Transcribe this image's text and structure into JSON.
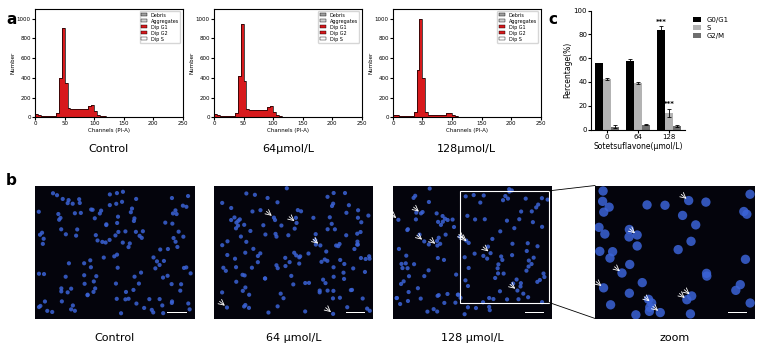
{
  "panel_labels": [
    "a",
    "b",
    "c"
  ],
  "histograms": {
    "type": "histogram",
    "x_label": "Channels (PI-A)",
    "y_label": "Number",
    "xlim": [
      0,
      250
    ],
    "xticks": [
      0,
      50,
      100,
      150,
      200,
      250
    ],
    "ylim": [
      0,
      1100
    ],
    "yticks": [
      0,
      200,
      400,
      600,
      800,
      1000
    ],
    "bins": [
      0,
      5,
      10,
      15,
      20,
      25,
      30,
      35,
      40,
      45,
      50,
      55,
      60,
      65,
      70,
      75,
      80,
      85,
      90,
      95,
      100,
      105,
      110,
      115,
      120,
      125,
      130,
      135,
      140,
      145,
      150
    ],
    "color": "#d7191c",
    "legend": "upper right",
    "legend_entries": [
      {
        "name": "Debris",
        "color": "#a0a0a0"
      },
      {
        "name": "Aggregates",
        "color": "#d0d0d0"
      },
      {
        "name": "Dip G1",
        "color": "#d7191c"
      },
      {
        "name": "Dip G2",
        "color": "#d7191c"
      },
      {
        "name": "Dip S",
        "color": "#ffffff"
      }
    ],
    "panels": [
      {
        "caption": "Control",
        "counts": [
          30,
          20,
          15,
          10,
          10,
          10,
          15,
          40,
          400,
          900,
          350,
          90,
          80,
          80,
          80,
          80,
          80,
          85,
          110,
          120,
          60,
          20,
          10,
          8,
          6,
          5,
          4,
          3,
          2,
          2
        ]
      },
      {
        "caption": "64μmol/L",
        "counts": [
          30,
          20,
          15,
          10,
          10,
          10,
          15,
          40,
          420,
          950,
          370,
          80,
          70,
          70,
          70,
          70,
          70,
          75,
          100,
          110,
          55,
          18,
          9,
          7,
          5,
          4,
          3,
          2,
          2,
          1
        ]
      },
      {
        "caption": "128μmol/L",
        "counts": [
          25,
          18,
          12,
          10,
          10,
          10,
          15,
          50,
          480,
          1000,
          400,
          50,
          25,
          20,
          20,
          20,
          20,
          25,
          40,
          45,
          25,
          10,
          6,
          5,
          4,
          3,
          2,
          2,
          1,
          1
        ]
      }
    ]
  },
  "images": {
    "type": "image",
    "panels": [
      {
        "caption": "Control"
      },
      {
        "caption": "64 μmol/L"
      },
      {
        "caption": "128 μmol/L"
      },
      {
        "caption": "zoom"
      }
    ]
  },
  "chart_data": {
    "type": "bar",
    "categories": [
      "0",
      "64",
      "128"
    ],
    "x_label": "Sotetsuflavone(μmol/L)",
    "y_label": "Percentage(%)",
    "ylim": [
      0,
      100
    ],
    "yticks": [
      0,
      20,
      40,
      60,
      80,
      100
    ],
    "legend": "upper left",
    "series": [
      {
        "name": "G0/G1",
        "color": "#000000",
        "values": [
          55.5,
          57.5,
          84
        ],
        "errors": [
          0.8,
          2,
          3
        ]
      },
      {
        "name": "S",
        "color": "#b3b3b3",
        "values": [
          42.5,
          39,
          14
        ],
        "errors": [
          1,
          0.8,
          3.5
        ]
      },
      {
        "name": "G2/M",
        "color": "#6e6e6e",
        "values": [
          2.5,
          4,
          3
        ],
        "errors": [
          1,
          0.5,
          1
        ]
      }
    ],
    "annotations": [
      {
        "series": "G0/G1",
        "category": "128",
        "text": "***"
      },
      {
        "series": "S",
        "category": "128",
        "text": "***"
      }
    ]
  }
}
